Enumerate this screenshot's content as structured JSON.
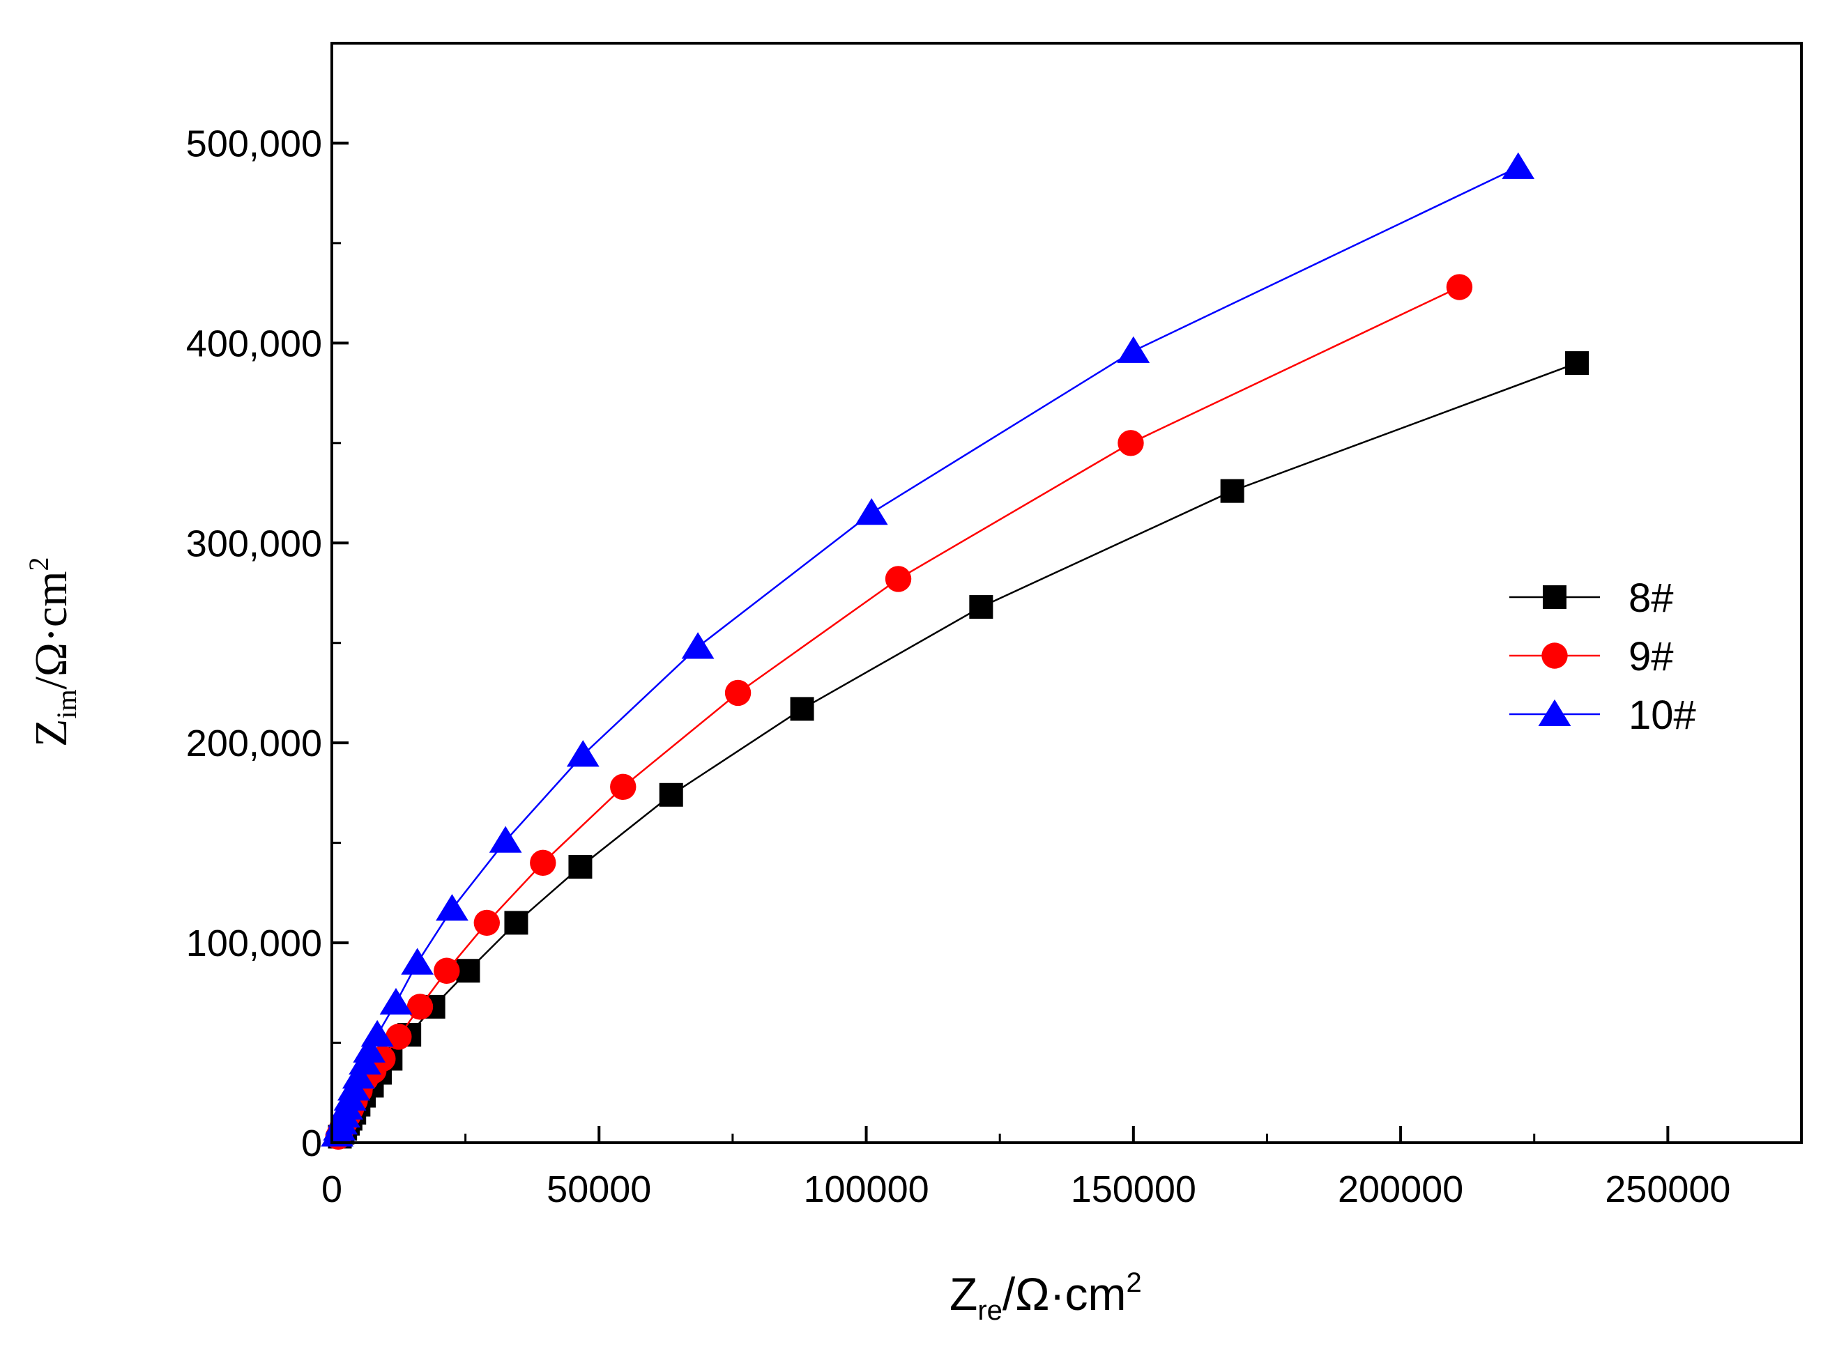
{
  "chart_data": {
    "type": "line",
    "title": "",
    "xlabel": {
      "main": "Z",
      "sub": "re",
      "rest": "/Ω·cm",
      "sup": "2"
    },
    "ylabel": {
      "main": "Z",
      "sub": "im",
      "rest": "/Ω·cm",
      "sup": "2"
    },
    "xlim": [
      0,
      275000
    ],
    "ylim": [
      0,
      550000
    ],
    "x_ticks": [
      0,
      50000,
      100000,
      150000,
      200000,
      250000
    ],
    "x_tick_labels": [
      "0",
      "50000",
      "100000",
      "150000",
      "200000",
      "250000"
    ],
    "y_ticks": [
      0,
      100000,
      200000,
      300000,
      400000,
      500000
    ],
    "y_tick_labels": [
      "0",
      "100,000",
      "200,000",
      "300,000",
      "400,000",
      "500,000"
    ],
    "legend_position": "right",
    "series": [
      {
        "name": "8#",
        "color": "#000000",
        "marker": "square",
        "x": [
          1500,
          2000,
          2500,
          3000,
          3500,
          4200,
          5000,
          6000,
          7500,
          9000,
          11000,
          14500,
          19000,
          25500,
          34500,
          46500,
          63500,
          88000,
          121500,
          168500,
          233000
        ],
        "y": [
          3000,
          5000,
          7000,
          9500,
          12000,
          15000,
          19000,
          23500,
          28500,
          35000,
          42000,
          54000,
          68000,
          86000,
          110000,
          138000,
          174000,
          217000,
          268000,
          326000,
          390000
        ]
      },
      {
        "name": "9#",
        "color": "#ff0000",
        "marker": "circle",
        "x": [
          1200,
          1600,
          2000,
          2500,
          3000,
          3600,
          4300,
          5200,
          6300,
          7800,
          9500,
          12500,
          16500,
          21500,
          29000,
          39500,
          54500,
          76000,
          106000,
          149500,
          211000
        ],
        "y": [
          3000,
          5500,
          8000,
          10500,
          13500,
          17000,
          21000,
          26000,
          32000,
          36000,
          42000,
          53000,
          68000,
          86000,
          110000,
          140000,
          178000,
          225000,
          282000,
          350000,
          428000
        ]
      },
      {
        "name": "10#",
        "color": "#0000ff",
        "marker": "triangle",
        "x": [
          1000,
          1400,
          1800,
          2300,
          2800,
          3400,
          4100,
          5000,
          6200,
          7000,
          8500,
          12000,
          16000,
          22500,
          32500,
          47000,
          68500,
          101000,
          150000,
          222000
        ],
        "y": [
          4000,
          7000,
          10000,
          13500,
          17500,
          22000,
          27000,
          33000,
          40000,
          46000,
          54000,
          70000,
          90000,
          117000,
          151000,
          194000,
          248000,
          315000,
          396000,
          488000
        ]
      }
    ]
  }
}
